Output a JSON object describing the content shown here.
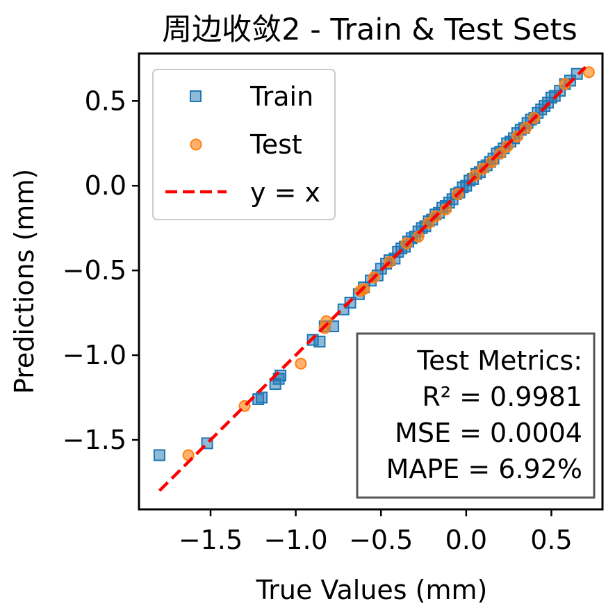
{
  "chart_data": {
    "type": "scatter",
    "title": "周边收敛2 - Train & Test Sets",
    "xlabel": "True Values (mm)",
    "ylabel": "Predictions (mm)",
    "xlim": [
      -1.92,
      0.8
    ],
    "ylim": [
      -1.91,
      0.78
    ],
    "xticks": [
      -1.5,
      -1.0,
      -0.5,
      0.0,
      0.5
    ],
    "yticks": [
      -1.5,
      -1.0,
      -0.5,
      0.0,
      0.5
    ],
    "xtick_labels": [
      "−1.5",
      "−1.0",
      "−0.5",
      "0.0",
      "0.5"
    ],
    "ytick_labels": [
      "−1.5",
      "−1.0",
      "−0.5",
      "0.0",
      "0.5"
    ],
    "grid": false,
    "legend_position": "top-left",
    "series": [
      {
        "name": "Train",
        "marker": "square",
        "color": "#1f77b4",
        "points": [
          [
            -1.8,
            -1.59
          ],
          [
            -1.52,
            -1.52
          ],
          [
            -1.22,
            -1.26
          ],
          [
            -1.2,
            -1.25
          ],
          [
            -1.12,
            -1.17
          ],
          [
            -1.1,
            -1.14
          ],
          [
            -1.09,
            -1.12
          ],
          [
            -0.9,
            -0.91
          ],
          [
            -0.86,
            -0.92
          ],
          [
            -0.83,
            -0.83
          ],
          [
            -0.78,
            -0.83
          ],
          [
            -0.72,
            -0.73
          ],
          [
            -0.68,
            -0.69
          ],
          [
            -0.63,
            -0.64
          ],
          [
            -0.6,
            -0.6
          ],
          [
            -0.56,
            -0.56
          ],
          [
            -0.52,
            -0.53
          ],
          [
            -0.5,
            -0.49
          ],
          [
            -0.47,
            -0.46
          ],
          [
            -0.45,
            -0.44
          ],
          [
            -0.42,
            -0.43
          ],
          [
            -0.4,
            -0.39
          ],
          [
            -0.38,
            -0.37
          ],
          [
            -0.36,
            -0.36
          ],
          [
            -0.34,
            -0.33
          ],
          [
            -0.32,
            -0.31
          ],
          [
            -0.3,
            -0.3
          ],
          [
            -0.28,
            -0.27
          ],
          [
            -0.26,
            -0.25
          ],
          [
            -0.24,
            -0.24
          ],
          [
            -0.22,
            -0.21
          ],
          [
            -0.2,
            -0.2
          ],
          [
            -0.18,
            -0.17
          ],
          [
            -0.16,
            -0.16
          ],
          [
            -0.14,
            -0.13
          ],
          [
            -0.12,
            -0.12
          ],
          [
            -0.1,
            -0.1
          ],
          [
            -0.08,
            -0.08
          ],
          [
            -0.06,
            -0.05
          ],
          [
            -0.04,
            -0.04
          ],
          [
            -0.02,
            -0.01
          ],
          [
            0.0,
            0.0
          ],
          [
            0.02,
            0.03
          ],
          [
            0.04,
            0.04
          ],
          [
            0.06,
            0.07
          ],
          [
            0.08,
            0.08
          ],
          [
            0.1,
            0.11
          ],
          [
            0.12,
            0.12
          ],
          [
            0.14,
            0.14
          ],
          [
            0.16,
            0.16
          ],
          [
            0.18,
            0.19
          ],
          [
            0.2,
            0.2
          ],
          [
            0.22,
            0.22
          ],
          [
            0.24,
            0.25
          ],
          [
            0.26,
            0.26
          ],
          [
            0.28,
            0.28
          ],
          [
            0.3,
            0.31
          ],
          [
            0.32,
            0.33
          ],
          [
            0.34,
            0.34
          ],
          [
            0.36,
            0.37
          ],
          [
            0.38,
            0.39
          ],
          [
            0.4,
            0.4
          ],
          [
            0.42,
            0.43
          ],
          [
            0.44,
            0.45
          ],
          [
            0.46,
            0.47
          ],
          [
            0.48,
            0.49
          ],
          [
            0.5,
            0.52
          ],
          [
            0.52,
            0.53
          ],
          [
            0.55,
            0.56
          ],
          [
            0.58,
            0.6
          ],
          [
            0.61,
            0.62
          ],
          [
            0.65,
            0.66
          ]
        ]
      },
      {
        "name": "Test",
        "marker": "circle",
        "color": "#ff7f0e",
        "points": [
          [
            -1.63,
            -1.59
          ],
          [
            -1.3,
            -1.3
          ],
          [
            -0.97,
            -1.05
          ],
          [
            -0.82,
            -0.8
          ],
          [
            -0.83,
            -0.84
          ],
          [
            -0.62,
            -0.62
          ],
          [
            -0.6,
            -0.61
          ],
          [
            -0.54,
            -0.54
          ],
          [
            -0.45,
            -0.45
          ],
          [
            -0.35,
            -0.34
          ],
          [
            -0.28,
            -0.3
          ],
          [
            -0.22,
            -0.22
          ],
          [
            -0.18,
            -0.18
          ],
          [
            -0.12,
            -0.14
          ],
          [
            -0.05,
            -0.05
          ],
          [
            0.05,
            0.06
          ],
          [
            0.1,
            0.1
          ],
          [
            0.15,
            0.14
          ],
          [
            0.2,
            0.19
          ],
          [
            0.24,
            0.23
          ],
          [
            0.3,
            0.29
          ],
          [
            0.35,
            0.34
          ],
          [
            0.4,
            0.4
          ],
          [
            0.58,
            0.6
          ],
          [
            0.72,
            0.67
          ]
        ]
      },
      {
        "name": "y = x",
        "type": "line",
        "style": "dashed",
        "color": "#ff0000",
        "points": [
          [
            -1.8,
            -1.8
          ],
          [
            0.7,
            0.7
          ]
        ]
      }
    ],
    "annotation_box": {
      "position": "bottom-right",
      "lines": [
        "Test Metrics:",
        "R² = 0.9981",
        "MSE = 0.0004",
        "MAPE = 6.92%"
      ]
    }
  },
  "legend": {
    "train_label": "Train",
    "test_label": "Test",
    "line_label": "y = x"
  }
}
